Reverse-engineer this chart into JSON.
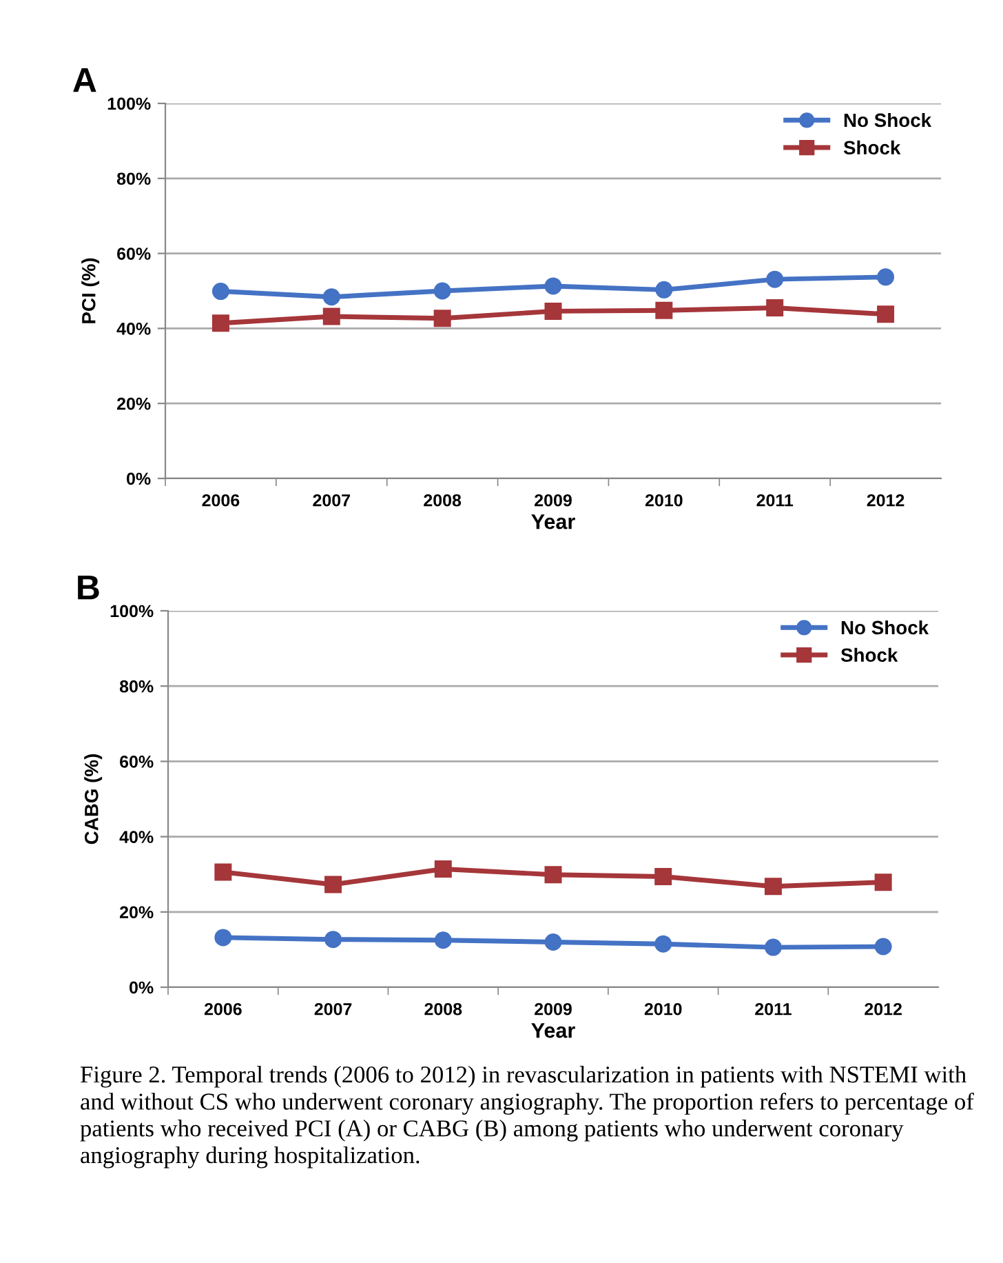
{
  "chart_data": [
    {
      "type": "line",
      "title": "A",
      "xlabel": "Year",
      "ylabel": "PCI (%)",
      "categories": [
        "2006",
        "2007",
        "2008",
        "2009",
        "2010",
        "2011",
        "2012"
      ],
      "series": [
        {
          "name": "No Shock",
          "color": "#4472c4",
          "marker": "circle",
          "values": [
            49.9,
            48.4,
            50.0,
            51.3,
            50.3,
            53.1,
            53.7
          ]
        },
        {
          "name": "Shock",
          "color": "#a5363a",
          "marker": "square",
          "values": [
            41.4,
            43.2,
            42.7,
            44.6,
            44.8,
            45.5,
            43.8
          ]
        }
      ],
      "ylim": [
        0,
        100
      ],
      "yticks": [
        {
          "value": 0,
          "label": "0%"
        },
        {
          "value": 20,
          "label": "20%"
        },
        {
          "value": 40,
          "label": "40%"
        },
        {
          "value": 60,
          "label": "60%"
        },
        {
          "value": 80,
          "label": "80%"
        },
        {
          "value": 100,
          "label": "100%"
        }
      ],
      "grid": "y",
      "legend": "top right",
      "line_style": "solid"
    },
    {
      "type": "line",
      "title": "B",
      "xlabel": "Year",
      "ylabel": "CABG (%)",
      "categories": [
        "2006",
        "2007",
        "2008",
        "2009",
        "2010",
        "2011",
        "2012"
      ],
      "series": [
        {
          "name": "No Shock",
          "color": "#4472c4",
          "marker": "circle",
          "values": [
            13.2,
            12.7,
            12.5,
            12.0,
            11.5,
            10.6,
            10.8
          ]
        },
        {
          "name": "Shock",
          "color": "#a5363a",
          "marker": "square",
          "values": [
            30.6,
            27.3,
            31.4,
            29.9,
            29.4,
            26.8,
            27.9
          ]
        }
      ],
      "ylim": [
        0,
        100
      ],
      "yticks": [
        {
          "value": 0,
          "label": "0%"
        },
        {
          "value": 20,
          "label": "20%"
        },
        {
          "value": 40,
          "label": "40%"
        },
        {
          "value": 60,
          "label": "60%"
        },
        {
          "value": 80,
          "label": "80%"
        },
        {
          "value": 100,
          "label": "100%"
        }
      ],
      "grid": "y",
      "legend": "top right",
      "line_style": "solid",
      "annotations": [
        "Figure 2. Temporal trends (2006 to 2012) in revascularization in patients with NSTEMI with and without CS who underwent coronary angiography. The proportion refers to percentage of patients who received PCI (A) or CABG (B) among patients who underwent coronary angiography during hospitalization."
      ]
    }
  ]
}
